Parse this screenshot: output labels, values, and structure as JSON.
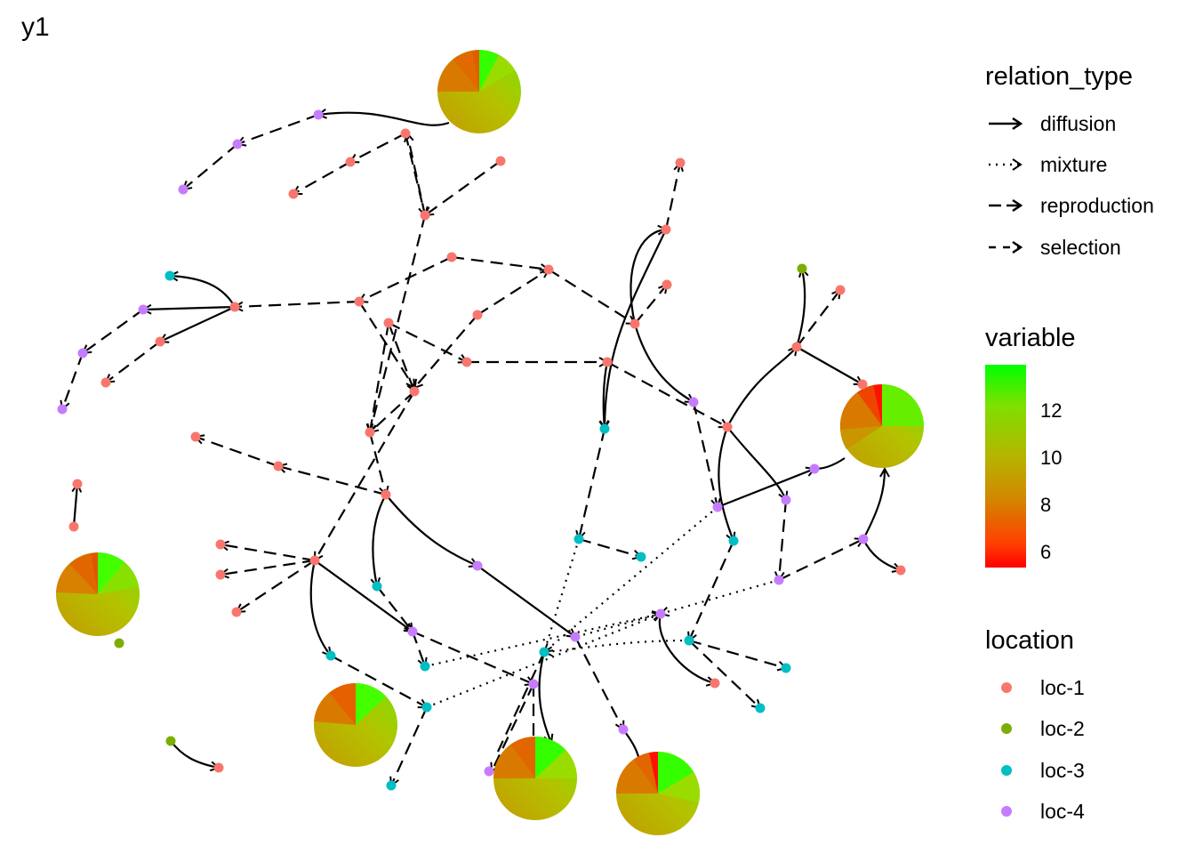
{
  "title": "y1",
  "legends": {
    "relation_type": {
      "title": "relation_type",
      "items": [
        {
          "label": "diffusion",
          "style": "solid"
        },
        {
          "label": "mixture",
          "style": "dotted"
        },
        {
          "label": "reproduction",
          "style": "longdash"
        },
        {
          "label": "selection",
          "style": "dashed"
        }
      ]
    },
    "variable": {
      "title": "variable",
      "ticks": [
        "12",
        "10",
        "8",
        "6"
      ],
      "low_color": "#ff0000",
      "mid_color": "#b5b500",
      "high_color": "#00ff00"
    },
    "location": {
      "title": "location",
      "items": [
        {
          "label": "loc-1",
          "color": "#f8766d"
        },
        {
          "label": "loc-2",
          "color": "#7cae00"
        },
        {
          "label": "loc-3",
          "color": "#00bfc4"
        },
        {
          "label": "loc-4",
          "color": "#c77cff"
        }
      ]
    }
  },
  "colors": {
    "loc1": "#f8766d",
    "loc2": "#7cae00",
    "loc3": "#00bfc4",
    "loc4": "#c77cff",
    "edge": "#000000"
  }
}
